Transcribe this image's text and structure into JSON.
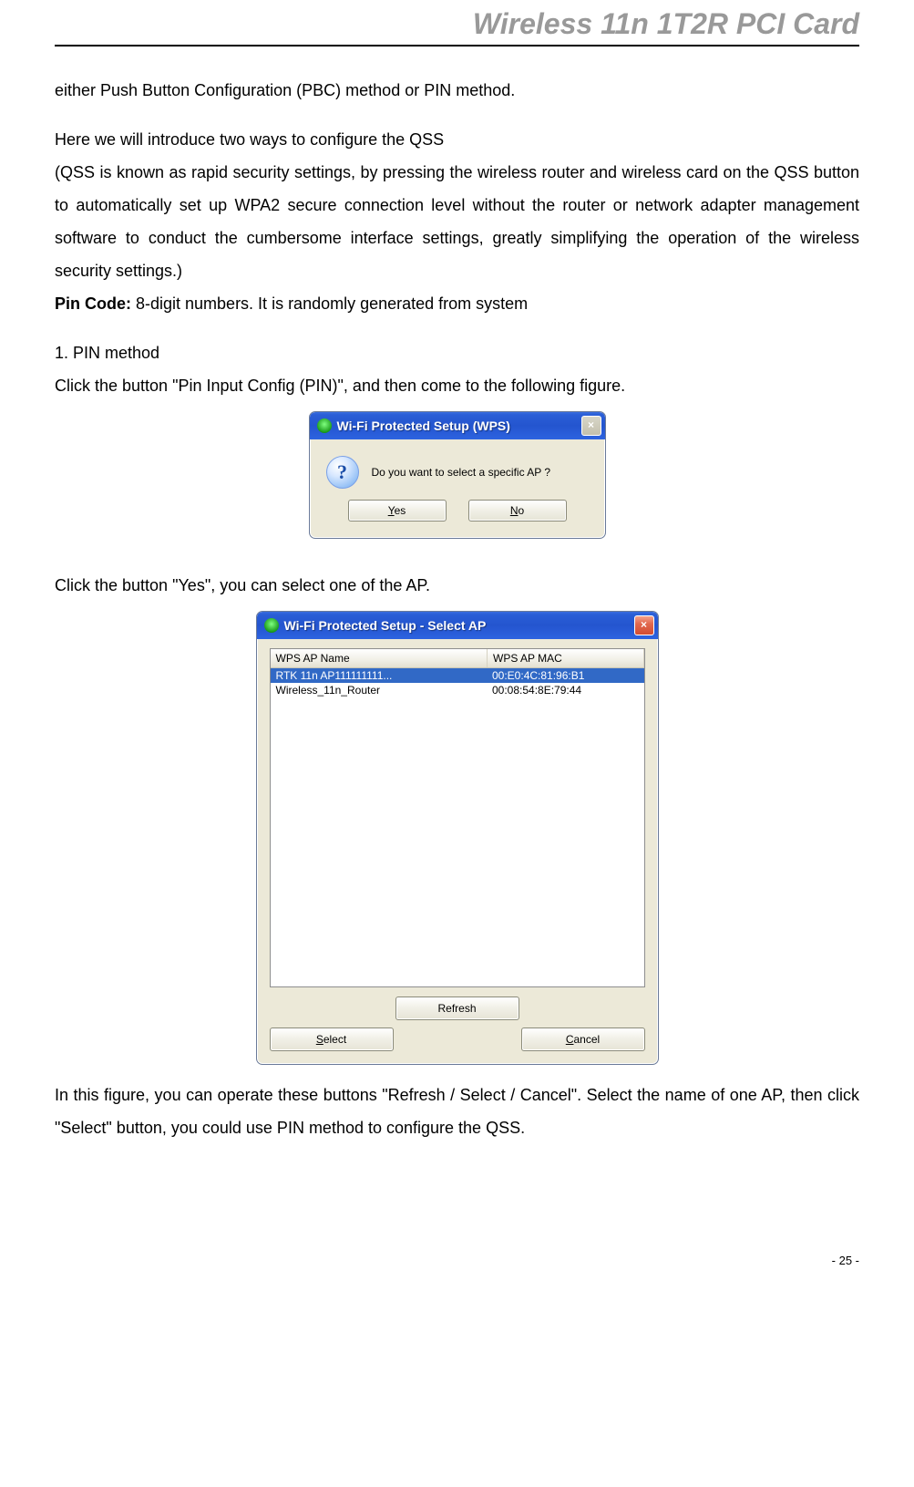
{
  "header": {
    "title": "Wireless 11n 1T2R PCI Card"
  },
  "para1": "either Push Button Configuration (PBC) method or PIN method.",
  "para2": "Here we will introduce two ways to configure the QSS",
  "para3": "(QSS is known as rapid security settings, by pressing the wireless router and wireless card on the QSS button to automatically set up WPA2 secure connection level without the router or network adapter management software to conduct the cumbersome interface settings, greatly simplifying the operation of the wireless security settings.)",
  "para4_bold": "Pin Code:",
  "para4_rest": " 8-digit numbers. It is randomly generated from system",
  "list1": "1.   PIN method",
  "para5": "Click the button \"Pin Input Config (PIN)\", and then come to the following figure.",
  "para6": "Click the button \"Yes\", you can select one of the AP.",
  "para7": "In this figure, you can operate these buttons \"Refresh / Select / Cancel\". Select the name of one AP, then click \"Select\" button, you could use PIN method to configure the QSS.",
  "dialog1": {
    "title": "Wi-Fi Protected Setup (WPS)",
    "message": "Do you want to select a specific AP ?",
    "yes_pre": "",
    "yes_u": "Y",
    "yes_post": "es",
    "no_pre": "",
    "no_u": "N",
    "no_post": "o"
  },
  "dialog2": {
    "title": "Wi-Fi Protected Setup - Select AP",
    "col_name": "WPS AP Name",
    "col_mac": "WPS AP MAC",
    "rows": [
      {
        "name": "RTK 11n AP111111111...",
        "mac": "00:E0:4C:81:96:B1",
        "selected": true
      },
      {
        "name": "Wireless_11n_Router",
        "mac": "00:08:54:8E:79:44",
        "selected": false
      }
    ],
    "refresh": "Refresh",
    "select_pre": "",
    "select_u": "S",
    "select_post": "elect",
    "cancel_pre": "",
    "cancel_u": "C",
    "cancel_post": "ancel"
  },
  "pagenum": "- 25 -"
}
